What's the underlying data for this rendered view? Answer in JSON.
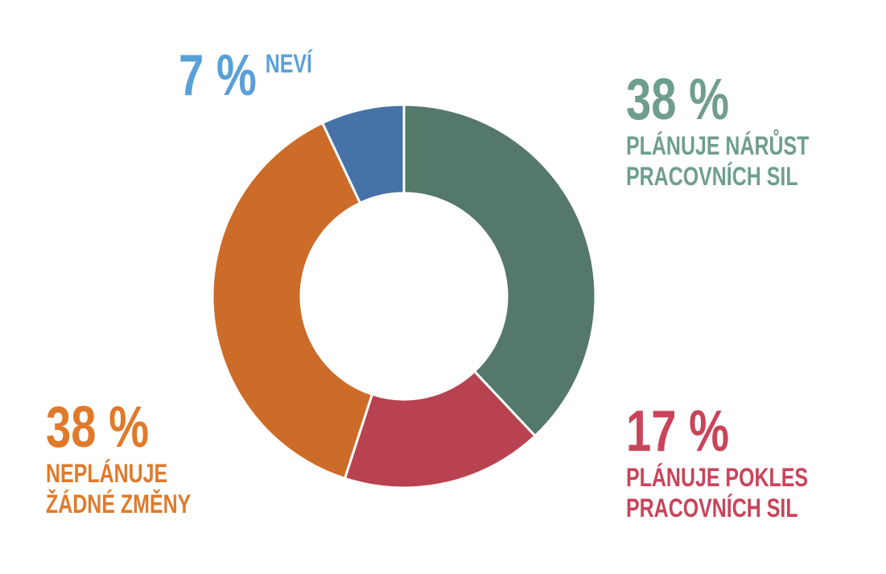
{
  "chart_data": {
    "type": "donut",
    "categories": [
      "PLÁNUJE NÁRŮST PRACOVNÍCH SIL",
      "PLÁNUJE POKLES PRACOVNÍCH SIL",
      "NEPLÁNUJE ŽÁDNÉ ZMĚNY",
      "NEVÍ"
    ],
    "values": [
      38,
      17,
      38,
      7
    ],
    "value_labels": [
      "38 %",
      "17 %",
      "38 %",
      "7 %"
    ],
    "colors": [
      "#54786a",
      "#b94250",
      "#cc6c28",
      "#4672a8"
    ],
    "label_colors": [
      "#6f9e8f",
      "#c9445a",
      "#e07a2a",
      "#5aa0d8"
    ]
  }
}
